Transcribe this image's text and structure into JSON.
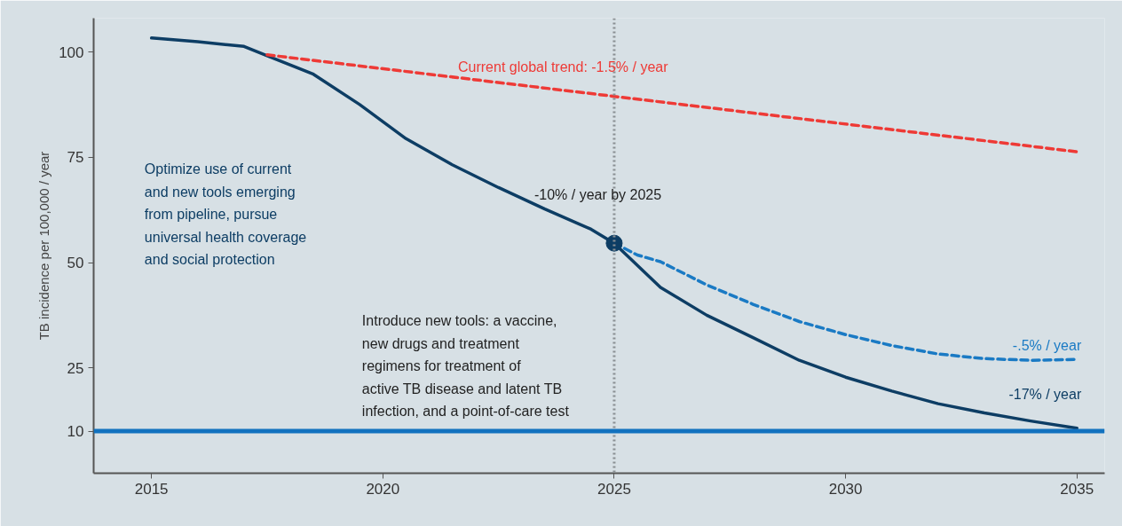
{
  "chart_data": {
    "type": "line",
    "ylabel": "TB incidence per 100,000 / year",
    "xlim": [
      2013.75,
      2035.6
    ],
    "xticks": [
      2015,
      2020,
      2025,
      2030,
      2035
    ],
    "ylim": [
      0,
      108
    ],
    "yticks": [
      10,
      25,
      50,
      75,
      100
    ],
    "grid": false,
    "series": [
      {
        "name": "-17% / year",
        "color": "#0d3d64",
        "line_style": "solid",
        "x": [
          2015,
          2016,
          2017,
          2017.5,
          2018.5,
          2019.5,
          2020.5,
          2021.5,
          2022.5,
          2023.5,
          2024.5,
          2025,
          2026,
          2027,
          2028,
          2029,
          2030,
          2031,
          2032,
          2033,
          2034,
          2035
        ],
        "values": [
          103.3,
          102.4,
          101.3,
          99.1,
          94.7,
          87.5,
          79.4,
          73.2,
          67.8,
          62.7,
          57.9,
          54.6,
          44.1,
          37.5,
          32.2,
          26.8,
          22.8,
          19.5,
          16.5,
          14.3,
          12.4,
          10.7
        ]
      },
      {
        "name": "Current global trend:  -1.5% / year",
        "color": "#ee3a36",
        "line_style": "dashed",
        "x": [
          2017.5,
          2035
        ],
        "values": [
          99.3,
          76.3
        ]
      },
      {
        "name": "-.5% / year",
        "color": "#1a7ac4",
        "line_style": "dashed",
        "x": [
          2025,
          2025.5,
          2026,
          2027,
          2028,
          2029,
          2030,
          2031,
          2032,
          2033,
          2034,
          2035
        ],
        "values": [
          54.6,
          51.8,
          50.2,
          44.7,
          40.1,
          36.0,
          32.9,
          30.3,
          28.3,
          27.2,
          26.8,
          27.0
        ]
      },
      {
        "type": "scatter",
        "marker": "circle",
        "color": "#0d3d64",
        "x": [
          2025
        ],
        "values": [
          54.6
        ]
      }
    ],
    "ref_lines": [
      {
        "axis": "x",
        "value": 2025,
        "color": "#8a8f93",
        "line_style": "dotted"
      },
      {
        "axis": "y",
        "value": 10,
        "color": "#1272bf",
        "line_style": "solid"
      }
    ],
    "annotations": [
      {
        "text": "-10% / year  by 2025",
        "x": 2025,
        "y": 54.6
      },
      "Optimize use of current\nand new tools emerging\nfrom pipeline, pursue\nuniversal health coverage\nand social protection",
      "Introduce new tools: a vaccine,\nnew drugs and treatment\nregimens for treatment of\nactive TB disease and latent TB\ninfection, and a point-of-care test"
    ]
  }
}
